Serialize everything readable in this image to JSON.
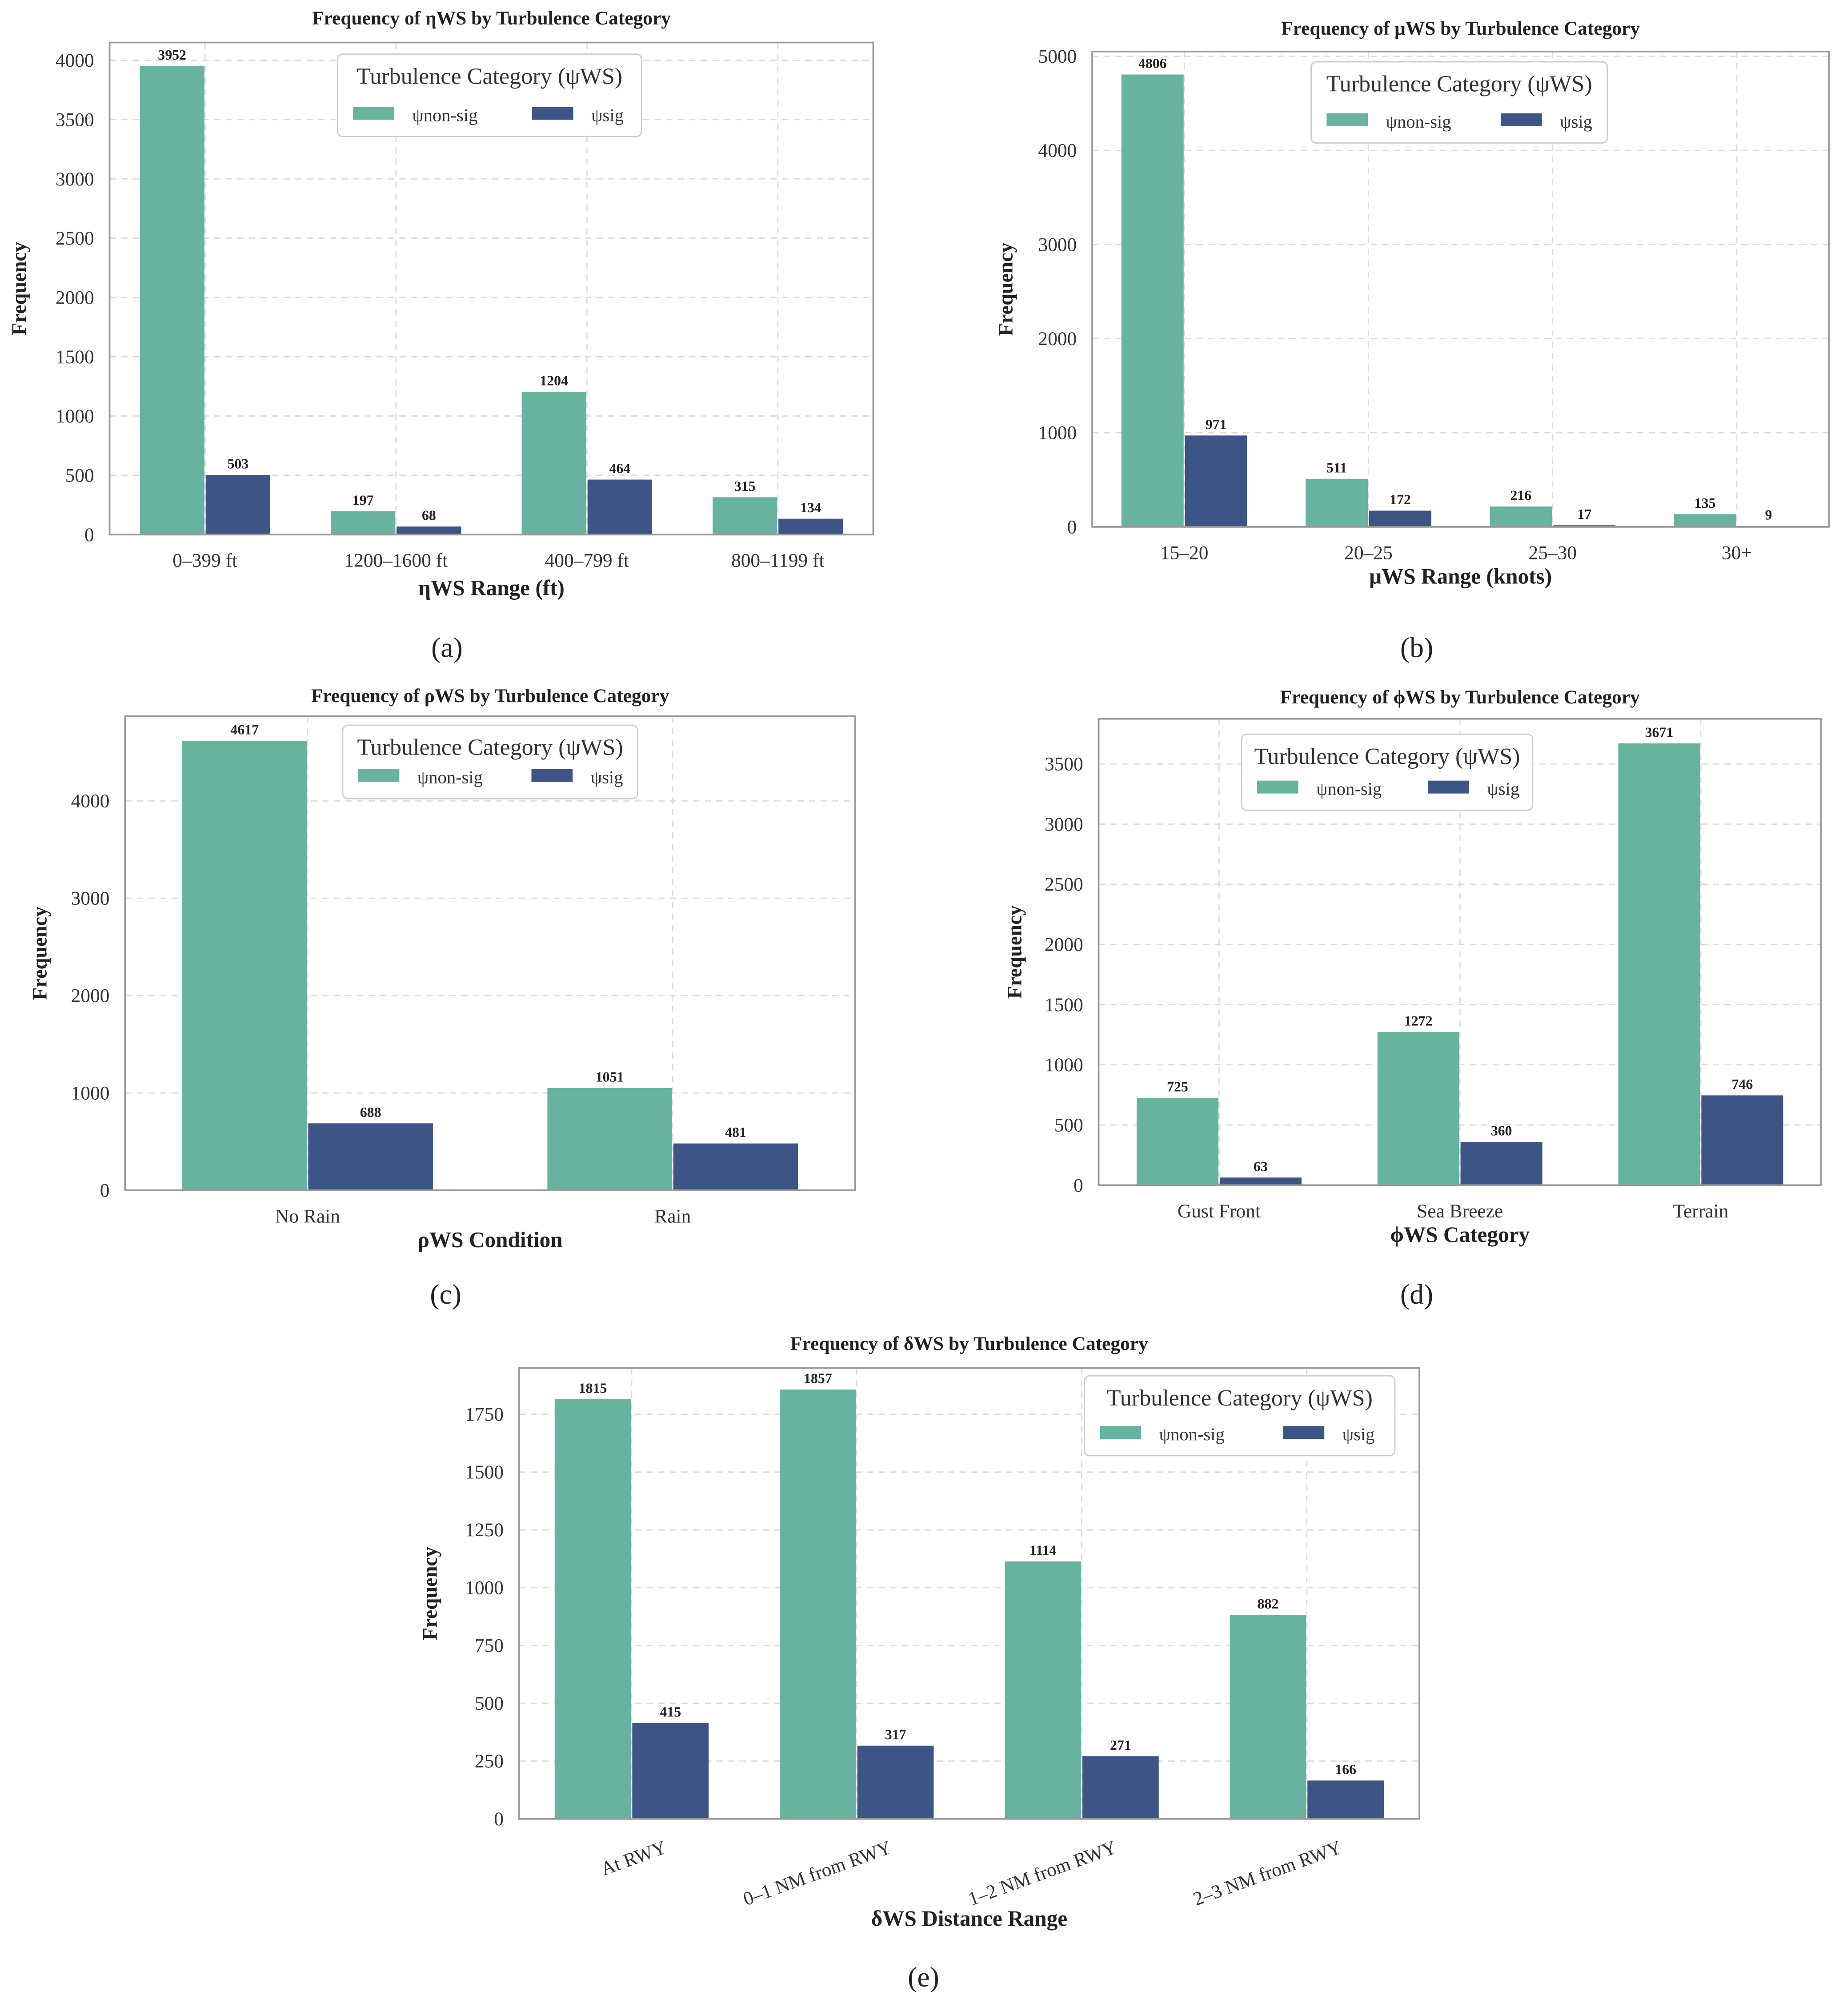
{
  "colors": {
    "non_sig": "#67b3a0",
    "sig": "#3d5487",
    "grid": "#dddddd",
    "axis": "#999999"
  },
  "legend": {
    "title": "Turbulence Category (ψWS)",
    "items": [
      "ψnon-sig",
      "ψsig"
    ]
  },
  "chart_data": [
    {
      "type": "bar",
      "panel": "(a)",
      "title": "Frequency of ηWS by Turbulence Category",
      "xlabel": "ηWS Range (ft)",
      "ylabel": "Frequency",
      "categories": [
        "0–399 ft",
        "1200–1600 ft",
        "400–799 ft",
        "800–1199 ft"
      ],
      "series": [
        {
          "name": "ψnon-sig",
          "values": [
            3952,
            197,
            1204,
            315
          ]
        },
        {
          "name": "ψsig",
          "values": [
            503,
            68,
            464,
            134
          ]
        }
      ],
      "ylim": [
        0,
        4150
      ],
      "yticks": [
        0,
        500,
        1000,
        1500,
        2000,
        2500,
        3000,
        3500,
        4000
      ],
      "grid": true,
      "legend_placement": "top-center"
    },
    {
      "type": "bar",
      "panel": "(b)",
      "title": "Frequency of μWS by Turbulence Category",
      "xlabel": "μWS Range (knots)",
      "ylabel": "Frequency",
      "categories": [
        "15–20",
        "20–25",
        "25–30",
        "30+"
      ],
      "series": [
        {
          "name": "ψnon-sig",
          "values": [
            4806,
            511,
            216,
            135
          ]
        },
        {
          "name": "ψsig",
          "values": [
            971,
            172,
            17,
            9
          ]
        }
      ],
      "ylim": [
        0,
        5050
      ],
      "yticks": [
        0,
        1000,
        2000,
        3000,
        4000,
        5000
      ],
      "grid": true,
      "legend_placement": "top-center"
    },
    {
      "type": "bar",
      "panel": "(c)",
      "title": "Frequency of ρWS by Turbulence Category",
      "xlabel": "ρWS Condition",
      "ylabel": "Frequency",
      "categories": [
        "No Rain",
        "Rain"
      ],
      "series": [
        {
          "name": "ψnon-sig",
          "values": [
            4617,
            1051
          ]
        },
        {
          "name": "ψsig",
          "values": [
            688,
            481
          ]
        }
      ],
      "ylim": [
        0,
        4870
      ],
      "yticks": [
        0,
        1000,
        2000,
        3000,
        4000
      ],
      "grid": true,
      "legend_placement": "top-center"
    },
    {
      "type": "bar",
      "panel": "(d)",
      "title": "Frequency of ϕWS by Turbulence Category",
      "xlabel": "ϕWS Category",
      "ylabel": "Frequency",
      "categories": [
        "Gust Front",
        "Sea Breeze",
        "Terrain"
      ],
      "series": [
        {
          "name": "ψnon-sig",
          "values": [
            725,
            1272,
            3671
          ]
        },
        {
          "name": "ψsig",
          "values": [
            63,
            360,
            746
          ]
        }
      ],
      "ylim": [
        0,
        3875
      ],
      "yticks": [
        0,
        500,
        1000,
        1500,
        2000,
        2500,
        3000,
        3500
      ],
      "grid": true,
      "legend_placement": "top-left"
    },
    {
      "type": "bar",
      "panel": "(e)",
      "title": "Frequency of δWS by Turbulence Category",
      "xlabel": "δWS Distance Range",
      "ylabel": "Frequency",
      "categories": [
        "At RWY",
        "0–1 NM from RWY",
        "1–2 NM from RWY",
        "2–3 NM from RWY"
      ],
      "series": [
        {
          "name": "ψnon-sig",
          "values": [
            1815,
            1857,
            1114,
            882
          ]
        },
        {
          "name": "ψsig",
          "values": [
            415,
            317,
            271,
            166
          ]
        }
      ],
      "ylim": [
        0,
        1950
      ],
      "yticks": [
        0,
        250,
        500,
        750,
        1000,
        1250,
        1500,
        1750
      ],
      "grid": true,
      "legend_placement": "top-right",
      "xtick_rotation": 20
    }
  ]
}
